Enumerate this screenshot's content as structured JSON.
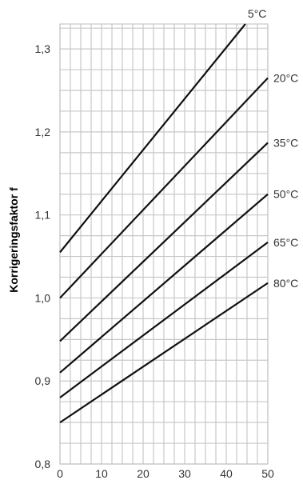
{
  "chart_data": {
    "type": "line",
    "title": "",
    "xlabel": "",
    "ylabel": "Korrigeringsfaktor f",
    "xlim": [
      0,
      50
    ],
    "ylim": [
      0.8,
      1.33
    ],
    "grid": true,
    "x_ticks": [
      {
        "value": 0,
        "label": "0"
      },
      {
        "value": 10,
        "label": "10"
      },
      {
        "value": 20,
        "label": "20"
      },
      {
        "value": 30,
        "label": "30"
      },
      {
        "value": 40,
        "label": "40"
      },
      {
        "value": 50,
        "label": "50"
      }
    ],
    "y_ticks": [
      {
        "value": 0.8,
        "label": "0,8"
      },
      {
        "value": 0.9,
        "label": "0,9"
      },
      {
        "value": 1.0,
        "label": "1,0"
      },
      {
        "value": 1.1,
        "label": "1,1"
      },
      {
        "value": 1.2,
        "label": "1,2"
      },
      {
        "value": 1.3,
        "label": "1,3"
      }
    ],
    "series": [
      {
        "name": "5°C",
        "x": [
          0,
          44.6
        ],
        "y": [
          1.055,
          1.33
        ]
      },
      {
        "name": "20°C",
        "x": [
          0,
          50
        ],
        "y": [
          1.0,
          1.265
        ]
      },
      {
        "name": "35°C",
        "x": [
          0,
          50
        ],
        "y": [
          0.948,
          1.187
        ]
      },
      {
        "name": "50°C",
        "x": [
          0,
          50
        ],
        "y": [
          0.91,
          1.125
        ]
      },
      {
        "name": "65°C",
        "x": [
          0,
          50
        ],
        "y": [
          0.88,
          1.067
        ]
      },
      {
        "name": "80°C",
        "x": [
          0,
          50
        ],
        "y": [
          0.85,
          1.018
        ]
      }
    ],
    "colors": {
      "line": "#111111",
      "grid": "#c8c8c8",
      "text": "#333333"
    }
  }
}
